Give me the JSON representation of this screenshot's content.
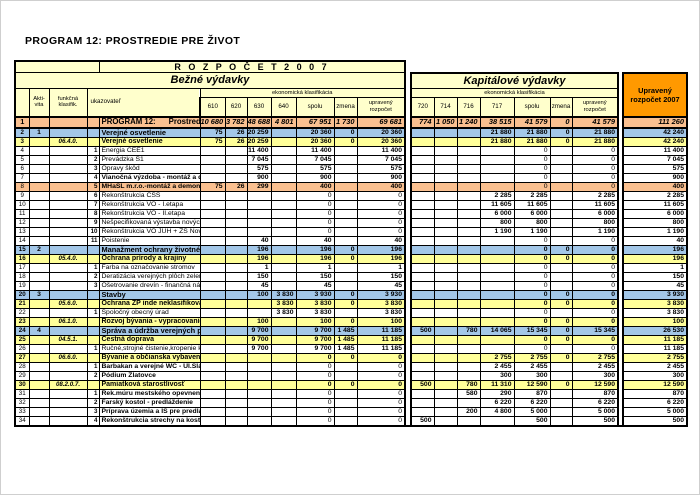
{
  "page_title": "PROGRAM 12:  PROSTREDIE  PRE  ŽIVOT",
  "colors": {
    "header_bg": "#FFFFCC",
    "total_header_bg": "#FF9900",
    "program_row_bg": "#FAC090",
    "section_row_bg": "#A3C7E8",
    "funkcna_row_bg": "#FFFF99",
    "highlight_row_bg": "#FAC090",
    "grid": "#000000"
  },
  "table": {
    "banner": "R O Z P O Č E T   2 0 0 7",
    "bezne_title": "Bežné výdavky",
    "kapital_title": "Kapitálové výdavky",
    "eko_label": "ekonomická klasifikácia",
    "col_aktivita": "Akti-\nvita",
    "col_funkcna": "funkčná\nklasifik.",
    "col_ukazovatel": "ukazovateľ",
    "bezne_cols": [
      "610",
      "620",
      "630",
      "640",
      "spolu",
      "zmena",
      "upravený rozpočet"
    ],
    "kapital_cols": [
      "720",
      "714",
      "716",
      "717",
      "spolu",
      "zmena",
      "upravený rozpočet"
    ],
    "total_col_label": "Upravený rozpočet 2007",
    "rows": [
      {
        "num": "1",
        "aktivita": "",
        "funkcna": "",
        "item": "",
        "label": "PROGRAM 12:      Prostredie pre život",
        "type": "program",
        "bold_label": true,
        "bezne": [
          "10 680",
          "3 782",
          "48 688",
          "4 801",
          "67 951",
          "1 730",
          "69 681"
        ],
        "kapital": [
          "774",
          "1 050",
          "1 240",
          "38 515",
          "41 579",
          "0",
          "41 579"
        ],
        "total": "111 260"
      },
      {
        "num": "2",
        "aktivita": "1",
        "funkcna": "",
        "item": "",
        "label": "Verejné osvetlenie",
        "type": "section",
        "bold_label": true,
        "bezne": [
          "75",
          "26",
          "20 259",
          "",
          "20 360",
          "0",
          "20 360"
        ],
        "kapital": [
          "",
          "",
          "",
          "21 880",
          "21 880",
          "0",
          "21 880"
        ],
        "total": "42 240"
      },
      {
        "num": "3",
        "aktivita": "",
        "funkcna": "06.4.0.",
        "item": "",
        "label": "Verejné osvetlenie",
        "type": "funkcna",
        "bold_label": true,
        "bezne": [
          "75",
          "26",
          "20 259",
          "",
          "20 360",
          "0",
          "20 360"
        ],
        "kapital": [
          "",
          "",
          "",
          "21 880",
          "21 880",
          "0",
          "21 880"
        ],
        "total": "42 240"
      },
      {
        "num": "4",
        "aktivita": "",
        "funkcna": "",
        "item": "1",
        "label": "Energia CEE1",
        "type": "detail",
        "bold_label": false,
        "bezne": [
          "",
          "",
          "11 400",
          "",
          "11 400",
          "",
          "11 400"
        ],
        "kapital": [
          "",
          "",
          "",
          "",
          "0",
          "",
          "0"
        ],
        "total": "11 400"
      },
      {
        "num": "5",
        "aktivita": "",
        "funkcna": "",
        "item": "2",
        "label": "Prevádzka S1",
        "type": "detail",
        "bold_label": false,
        "bezne": [
          "",
          "",
          "7 045",
          "",
          "7 045",
          "",
          "7 045"
        ],
        "kapital": [
          "",
          "",
          "",
          "",
          "0",
          "",
          "0"
        ],
        "total": "7 045"
      },
      {
        "num": "6",
        "aktivita": "",
        "funkcna": "",
        "item": "3",
        "label": "Opravy škôd",
        "type": "detail",
        "bold_label": false,
        "bezne": [
          "",
          "",
          "575",
          "",
          "575",
          "",
          "575"
        ],
        "kapital": [
          "",
          "",
          "",
          "",
          "0",
          "",
          "0"
        ],
        "total": "575"
      },
      {
        "num": "7",
        "aktivita": "",
        "funkcna": "",
        "item": "4",
        "label": "Vianočná výzdoba - montáž a demontáž",
        "type": "detail",
        "bold_label": true,
        "bezne": [
          "",
          "",
          "900",
          "",
          "900",
          "",
          "900"
        ],
        "kapital": [
          "",
          "",
          "",
          "",
          "0",
          "",
          "0"
        ],
        "total": "900"
      },
      {
        "num": "8",
        "aktivita": "",
        "funkcna": "",
        "item": "5",
        "label": "MHaSL m.r.o.-montáž a demontáž vian.osvetl.",
        "type": "highlight",
        "bold_label": true,
        "bezne": [
          "75",
          "26",
          "299",
          "",
          "400",
          "",
          "400"
        ],
        "kapital": [
          "",
          "",
          "",
          "",
          "0",
          "",
          "0"
        ],
        "total": "400"
      },
      {
        "num": "9",
        "aktivita": "",
        "funkcna": "",
        "item": "6",
        "label": "Rekonštrukcia CSS",
        "type": "detail",
        "bold_label": false,
        "bezne": [
          "",
          "",
          "",
          "",
          "0",
          "",
          "0"
        ],
        "kapital": [
          "",
          "",
          "",
          "2 285",
          "2 285",
          "",
          "2 285"
        ],
        "total": "2 285"
      },
      {
        "num": "10",
        "aktivita": "",
        "funkcna": "",
        "item": "7",
        "label": "Rekonštrukcia VO - I.etapa",
        "type": "detail",
        "bold_label": false,
        "bezne": [
          "",
          "",
          "",
          "",
          "0",
          "",
          "0"
        ],
        "kapital": [
          "",
          "",
          "",
          "11 605",
          "11 605",
          "",
          "11 605"
        ],
        "total": "11 605"
      },
      {
        "num": "11",
        "aktivita": "",
        "funkcna": "",
        "item": "8",
        "label": "Rekonštrukcia VO - II.etapa",
        "type": "detail",
        "bold_label": false,
        "bezne": [
          "",
          "",
          "",
          "",
          "0",
          "",
          "0"
        ],
        "kapital": [
          "",
          "",
          "",
          "6 000",
          "6 000",
          "",
          "6 000"
        ],
        "total": "6 000"
      },
      {
        "num": "12",
        "aktivita": "",
        "funkcna": "",
        "item": "9",
        "label": "Nešpecifikovaná výstavba nových svet.zdrojov",
        "type": "detail",
        "bold_label": false,
        "bezne": [
          "",
          "",
          "",
          "",
          "0",
          "",
          "0"
        ],
        "kapital": [
          "",
          "",
          "",
          "800",
          "800",
          "",
          "800"
        ],
        "total": "800"
      },
      {
        "num": "13",
        "aktivita": "",
        "funkcna": "",
        "item": "10",
        "label": "Rekonštrukcia VO JUH + ZŠ Novomeského",
        "type": "detail",
        "bold_label": false,
        "bezne": [
          "",
          "",
          "",
          "",
          "0",
          "",
          "0"
        ],
        "kapital": [
          "",
          "",
          "",
          "1 190",
          "1 190",
          "",
          "1 190"
        ],
        "total": "1 190"
      },
      {
        "num": "14",
        "aktivita": "",
        "funkcna": "",
        "item": "11",
        "label": "Poistenie",
        "type": "detail",
        "bold_label": false,
        "bezne": [
          "",
          "",
          "40",
          "",
          "40",
          "",
          "40"
        ],
        "kapital": [
          "",
          "",
          "",
          "",
          "0",
          "",
          "0"
        ],
        "total": "40"
      },
      {
        "num": "15",
        "aktivita": "2",
        "funkcna": "",
        "item": "",
        "label": "Manažment ochrany životného prostredia",
        "type": "section",
        "bold_label": true,
        "bezne": [
          "",
          "",
          "196",
          "",
          "196",
          "0",
          "196"
        ],
        "kapital": [
          "",
          "",
          "",
          "",
          "0",
          "0",
          "0"
        ],
        "total": "196"
      },
      {
        "num": "16",
        "aktivita": "",
        "funkcna": "05.4.0.",
        "item": "",
        "label": "Ochrana prírody a krajiny",
        "type": "funkcna",
        "bold_label": true,
        "bezne": [
          "",
          "",
          "196",
          "",
          "196",
          "0",
          "196"
        ],
        "kapital": [
          "",
          "",
          "",
          "",
          "0",
          "0",
          "0"
        ],
        "total": "196"
      },
      {
        "num": "17",
        "aktivita": "",
        "funkcna": "",
        "item": "1",
        "label": "Farba na označovanie stromov",
        "type": "detail",
        "bold_label": false,
        "bezne": [
          "",
          "",
          "1",
          "",
          "1",
          "",
          "1"
        ],
        "kapital": [
          "",
          "",
          "",
          "",
          "0",
          "",
          "0"
        ],
        "total": "1"
      },
      {
        "num": "18",
        "aktivita": "",
        "funkcna": "",
        "item": "2",
        "label": "Deratizácia verejných plôch zelene",
        "type": "detail",
        "bold_label": false,
        "bezne": [
          "",
          "",
          "150",
          "",
          "150",
          "",
          "150"
        ],
        "kapital": [
          "",
          "",
          "",
          "",
          "0",
          "",
          "0"
        ],
        "total": "150"
      },
      {
        "num": "19",
        "aktivita": "",
        "funkcna": "",
        "item": "3",
        "label": "Ošetrovanie drevín - finančná náhrada",
        "type": "detail",
        "bold_label": false,
        "bezne": [
          "",
          "",
          "45",
          "",
          "45",
          "",
          "45"
        ],
        "kapital": [
          "",
          "",
          "",
          "",
          "0",
          "",
          "0"
        ],
        "total": "45"
      },
      {
        "num": "20",
        "aktivita": "3",
        "funkcna": "",
        "item": "",
        "label": "Stavby",
        "type": "section",
        "bold_label": true,
        "bezne": [
          "",
          "",
          "100",
          "3 830",
          "3 930",
          "0",
          "3 930"
        ],
        "kapital": [
          "",
          "",
          "",
          "",
          "0",
          "0",
          "0"
        ],
        "total": "3 930"
      },
      {
        "num": "21",
        "aktivita": "",
        "funkcna": "05.6.0.",
        "item": "",
        "label": "Ochrana ŽP inde neklasifikovaná",
        "type": "funkcna",
        "bold_label": true,
        "bezne": [
          "",
          "",
          "",
          "3 830",
          "3 830",
          "0",
          "3 830"
        ],
        "kapital": [
          "",
          "",
          "",
          "",
          "0",
          "0",
          "0"
        ],
        "total": "3 830"
      },
      {
        "num": "22",
        "aktivita": "",
        "funkcna": "",
        "item": "1",
        "label": "Spoločný obecný úrad",
        "type": "detail",
        "bold_label": false,
        "bezne": [
          "",
          "",
          "",
          "3 830",
          "3 830",
          "",
          "3 830"
        ],
        "kapital": [
          "",
          "",
          "",
          "",
          "0",
          "",
          "0"
        ],
        "total": "3 830"
      },
      {
        "num": "23",
        "aktivita": "",
        "funkcna": "06.1.0.",
        "item": "",
        "label": "Rozvoj bývania - vypracovanie znal.posudkov",
        "type": "funkcna",
        "bold_label": true,
        "bezne": [
          "",
          "",
          "100",
          "",
          "100",
          "0",
          "100"
        ],
        "kapital": [
          "",
          "",
          "",
          "",
          "0",
          "0",
          "0"
        ],
        "total": "100"
      },
      {
        "num": "24",
        "aktivita": "4",
        "funkcna": "",
        "item": "",
        "label": "Správa a údržba verejných priestranstiev",
        "type": "section",
        "bold_label": true,
        "bezne": [
          "",
          "",
          "9 700",
          "",
          "9 700",
          "1 485",
          "11 185"
        ],
        "kapital": [
          "500",
          "",
          "780",
          "14 065",
          "15 345",
          "0",
          "15 345"
        ],
        "total": "26 530"
      },
      {
        "num": "25",
        "aktivita": "",
        "funkcna": "04.5.1.",
        "item": "",
        "label": "Cestná doprava",
        "type": "funkcna",
        "bold_label": true,
        "bezne": [
          "",
          "",
          "9 700",
          "",
          "9 700",
          "1 485",
          "11 185"
        ],
        "kapital": [
          "",
          "",
          "",
          "",
          "0",
          "0",
          "0"
        ],
        "total": "11 185"
      },
      {
        "num": "26",
        "aktivita": "",
        "funkcna": "",
        "item": "1",
        "label": "Ručné,strojné čistenie,kropenie komunikácii...",
        "type": "detail",
        "bold_label": false,
        "bezne": [
          "",
          "",
          "9 700",
          "",
          "9 700",
          "1 485",
          "11 185"
        ],
        "kapital": [
          "",
          "",
          "",
          "",
          "0",
          "",
          "0"
        ],
        "total": "11 185"
      },
      {
        "num": "27",
        "aktivita": "",
        "funkcna": "06.6.0.",
        "item": "",
        "label": "Bývanie a občianska vybavenosť inde nekl.",
        "type": "funkcna",
        "bold_label": true,
        "bezne": [
          "",
          "",
          "",
          "",
          "0",
          "0",
          "0"
        ],
        "kapital": [
          "",
          "",
          "",
          "2 755",
          "2 755",
          "0",
          "2 755"
        ],
        "total": "2 755"
      },
      {
        "num": "28",
        "aktivita": "",
        "funkcna": "",
        "item": "1",
        "label": "Barbakan a verejné WC - Ul.Sládkovičova",
        "type": "detail",
        "bold_label": true,
        "bezne": [
          "",
          "",
          "",
          "",
          "0",
          "",
          "0"
        ],
        "kapital": [
          "",
          "",
          "",
          "2 455",
          "2 455",
          "",
          "2 455"
        ],
        "total": "2 455"
      },
      {
        "num": "29",
        "aktivita": "",
        "funkcna": "",
        "item": "2",
        "label": "Pódium Zlatovce",
        "type": "detail",
        "bold_label": true,
        "bezne": [
          "",
          "",
          "",
          "",
          "0",
          "",
          "0"
        ],
        "kapital": [
          "",
          "",
          "",
          "300",
          "300",
          "",
          "300"
        ],
        "total": "300"
      },
      {
        "num": "30",
        "aktivita": "",
        "funkcna": "08.2.0.7.",
        "item": "",
        "label": "Pamiatková starostlivosť",
        "type": "funkcna",
        "bold_label": true,
        "bezne": [
          "",
          "",
          "",
          "",
          "0",
          "0",
          "0"
        ],
        "kapital": [
          "500",
          "",
          "780",
          "11 310",
          "12 590",
          "0",
          "12 590"
        ],
        "total": "12 590"
      },
      {
        "num": "31",
        "aktivita": "",
        "funkcna": "",
        "item": "1",
        "label": "Rek.múru mestského opevnenia-II.časť",
        "type": "detail",
        "bold_label": true,
        "bezne": [
          "",
          "",
          "",
          "",
          "0",
          "",
          "0"
        ],
        "kapital": [
          "",
          "",
          "580",
          "290",
          "870",
          "",
          "870"
        ],
        "total": "870"
      },
      {
        "num": "32",
        "aktivita": "",
        "funkcna": "",
        "item": "2",
        "label": "Farský kostol - predláždenie",
        "type": "detail",
        "bold_label": true,
        "bezne": [
          "",
          "",
          "",
          "",
          "0",
          "",
          "0"
        ],
        "kapital": [
          "",
          "",
          "",
          "6 220",
          "6 220",
          "",
          "6 220"
        ],
        "total": "6 220"
      },
      {
        "num": "33",
        "aktivita": "",
        "funkcna": "",
        "item": "3",
        "label": "Príprava územia a IS pre predláždenie-Farský kostol",
        "type": "detail",
        "bold_label": true,
        "bezne": [
          "",
          "",
          "",
          "",
          "0",
          "",
          "0"
        ],
        "kapital": [
          "",
          "",
          "200",
          "4 800",
          "5 000",
          "",
          "5 000"
        ],
        "total": "5 000"
      },
      {
        "num": "34",
        "aktivita": "",
        "funkcna": "",
        "item": "4",
        "label": "Rekonštrukcia strechy na kostole v Orechovom",
        "type": "detail",
        "bold_label": true,
        "bezne": [
          "",
          "",
          "",
          "",
          "0",
          "",
          "0"
        ],
        "kapital": [
          "500",
          "",
          "",
          "",
          "500",
          "",
          "500"
        ],
        "total": "500"
      }
    ]
  }
}
